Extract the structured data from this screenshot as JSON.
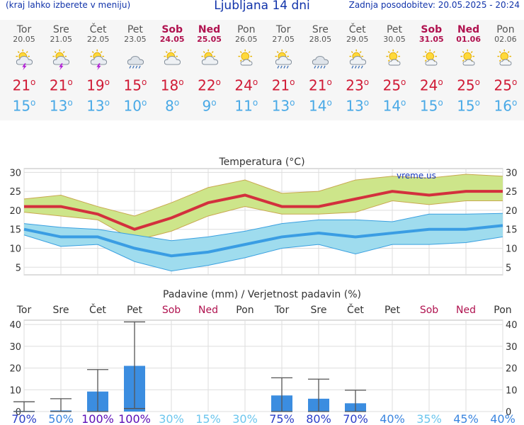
{
  "header": {
    "note": "(kraj lahko izberete v meniju)",
    "title": "Ljubljana 14 dni",
    "updated": "Zadnja posodobitev: 20.05.2025 - 20:24"
  },
  "days": [
    {
      "name": "Tor",
      "date": "20.05",
      "weekend": false,
      "icon": "thunderstorm-sun-icon",
      "tmax": "21",
      "tmin": "15"
    },
    {
      "name": "Sre",
      "date": "21.05",
      "weekend": false,
      "icon": "thunderstorm-sun-icon",
      "tmax": "21",
      "tmin": "13"
    },
    {
      "name": "Čet",
      "date": "22.05",
      "weekend": false,
      "icon": "thunderstorm-sun-icon",
      "tmax": "19",
      "tmin": "13"
    },
    {
      "name": "Pet",
      "date": "23.05",
      "weekend": false,
      "icon": "rain-cloud-icon",
      "tmax": "15",
      "tmin": "10"
    },
    {
      "name": "Sob",
      "date": "24.05",
      "weekend": true,
      "icon": "cloud-sun-icon",
      "tmax": "18",
      "tmin": "8"
    },
    {
      "name": "Ned",
      "date": "25.05",
      "weekend": true,
      "icon": "cloud-sun-icon",
      "tmax": "22",
      "tmin": "9"
    },
    {
      "name": "Pon",
      "date": "26.05",
      "weekend": false,
      "icon": "partly-sunny-icon",
      "tmax": "24",
      "tmin": "11"
    },
    {
      "name": "Tor",
      "date": "27.05",
      "weekend": false,
      "icon": "rain-sun-icon",
      "tmax": "21",
      "tmin": "13"
    },
    {
      "name": "Sre",
      "date": "28.05",
      "weekend": false,
      "icon": "rain-cloud-icon",
      "tmax": "21",
      "tmin": "14"
    },
    {
      "name": "Čet",
      "date": "29.05",
      "weekend": false,
      "icon": "rain-sun-icon",
      "tmax": "23",
      "tmin": "13"
    },
    {
      "name": "Pet",
      "date": "30.05",
      "weekend": false,
      "icon": "partly-sunny-icon",
      "tmax": "25",
      "tmin": "14"
    },
    {
      "name": "Sob",
      "date": "31.05",
      "weekend": true,
      "icon": "partly-sunny-icon",
      "tmax": "24",
      "tmin": "15"
    },
    {
      "name": "Ned",
      "date": "01.06",
      "weekend": true,
      "icon": "partly-sunny-icon",
      "tmax": "25",
      "tmin": "15"
    },
    {
      "name": "Pon",
      "date": "02.06",
      "weekend": false,
      "icon": "partly-sunny-icon",
      "tmax": "25",
      "tmin": "16"
    }
  ],
  "chart_data": [
    {
      "type": "line",
      "title": "Temperatura (°C)",
      "watermark": "vreme.us",
      "ylim": [
        3,
        31
      ],
      "yticks": [
        5,
        10,
        15,
        20,
        25,
        30
      ],
      "series": [
        {
          "name": "max",
          "color": "#d3303d",
          "values": [
            21,
            21,
            19,
            15,
            18,
            22,
            24,
            21,
            21,
            23,
            25,
            24,
            25,
            25
          ]
        },
        {
          "name": "max_upper",
          "color": "#c8e07a",
          "values": [
            23,
            24,
            21,
            18.5,
            22,
            26,
            28,
            24.5,
            25,
            28,
            29,
            28.5,
            29.5,
            29
          ]
        },
        {
          "name": "max_lower",
          "color": "#c8e07a",
          "values": [
            19.5,
            18.5,
            17.5,
            12,
            14.5,
            18.5,
            21,
            19,
            19,
            19.5,
            22.5,
            21.5,
            22.5,
            22.5
          ]
        },
        {
          "name": "min",
          "color": "#3a9de3",
          "values": [
            15,
            13,
            13,
            10,
            8,
            9,
            11,
            13,
            14,
            13,
            14,
            15,
            15,
            16
          ]
        },
        {
          "name": "min_upper",
          "color": "#8ed8ec",
          "values": [
            16.5,
            15.5,
            15,
            13.5,
            12,
            13,
            14.5,
            16.5,
            17.5,
            17.5,
            17,
            19,
            19,
            19.2
          ]
        },
        {
          "name": "min_lower",
          "color": "#8ed8ec",
          "values": [
            13.5,
            10.5,
            11,
            6.5,
            4,
            5.5,
            7.5,
            10,
            11,
            8.5,
            11,
            11,
            11.5,
            13
          ]
        }
      ]
    },
    {
      "type": "bar",
      "title": "Padavine (mm) / Verjetnost padavin (%)",
      "categories": [
        "Tor",
        "Sre",
        "Čet",
        "Pet",
        "Sob",
        "Ned",
        "Pon",
        "Tor",
        "Sre",
        "Čet",
        "Pet",
        "Sob",
        "Ned",
        "Pon"
      ],
      "weekend": [
        false,
        false,
        false,
        false,
        true,
        true,
        false,
        false,
        false,
        false,
        false,
        true,
        true,
        false
      ],
      "ylim": [
        0,
        42
      ],
      "yticks": [
        0,
        10,
        20,
        30,
        40
      ],
      "values": [
        0.3,
        0.5,
        9.2,
        21,
        0,
        0,
        0,
        7.4,
        5.9,
        3.8,
        0,
        0,
        0,
        0
      ],
      "err_low": [
        0,
        0,
        0,
        1.4,
        null,
        null,
        null,
        0,
        0,
        0,
        null,
        null,
        null,
        null
      ],
      "err_high": [
        4.5,
        5.9,
        19.3,
        41.2,
        null,
        null,
        null,
        15.5,
        14.9,
        9.8,
        null,
        null,
        null,
        null
      ],
      "probabilities": [
        "70%",
        "50%",
        "100%",
        "100%",
        "30%",
        "15%",
        "30%",
        "75%",
        "80%",
        "70%",
        "40%",
        "35%",
        "45%",
        "40%"
      ],
      "prob_values": [
        70,
        50,
        100,
        100,
        30,
        15,
        30,
        75,
        80,
        70,
        40,
        35,
        45,
        40
      ]
    }
  ]
}
